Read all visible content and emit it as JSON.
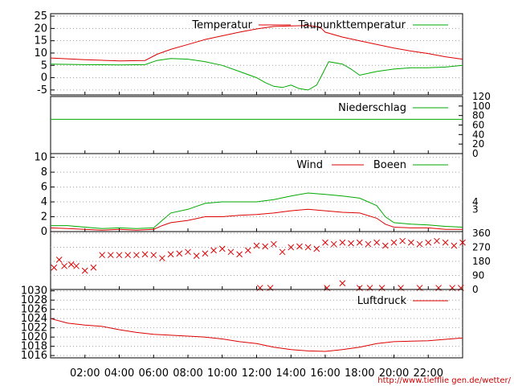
{
  "credit": "http://www.tiefflie gen.de/wetter/",
  "colors": {
    "red": "#dd0000",
    "green": "#00aa00",
    "grid": "#a0a0a0"
  },
  "chart_data": [
    {
      "type": "line",
      "name": "temperature",
      "ylim": [
        -7,
        26
      ],
      "yticks": [
        "25",
        "20",
        "15",
        "10",
        "5",
        "0",
        "-5"
      ],
      "legend": [
        "Temperatur",
        "Taupunkttemperatur"
      ],
      "series": [
        {
          "name": "Temperatur",
          "color": "red",
          "x": [
            0,
            2,
            4,
            5.5,
            6.2,
            7,
            8,
            9,
            10,
            11,
            12,
            13,
            14,
            15,
            15.7,
            16,
            17,
            18,
            19,
            20,
            21,
            22,
            23,
            24
          ],
          "values": [
            8,
            7.3,
            6.8,
            7,
            9.5,
            11.5,
            13.5,
            15.5,
            17,
            18.5,
            19.8,
            20.8,
            21,
            21.2,
            20.5,
            18.5,
            16.5,
            15,
            13.5,
            12,
            10.8,
            9.8,
            8.5,
            7.5
          ]
        },
        {
          "name": "Taupunkttemperatur",
          "color": "green",
          "x": [
            0,
            2,
            4,
            5.5,
            6.2,
            7,
            8,
            9,
            10,
            11,
            12,
            12.5,
            13,
            13.5,
            14,
            14.5,
            15,
            15.5,
            15.8,
            16.2,
            17,
            17.5,
            18,
            19,
            20,
            21,
            22,
            23,
            24
          ],
          "values": [
            5.5,
            5.3,
            5.2,
            5.3,
            7,
            7.8,
            7.5,
            6.5,
            5,
            2.5,
            0,
            -2,
            -3.5,
            -4,
            -3,
            -4.5,
            -5,
            -3,
            1,
            6.5,
            5.5,
            3.5,
            1,
            2.5,
            3.5,
            4,
            4,
            4.3,
            5
          ]
        }
      ]
    },
    {
      "type": "line",
      "name": "precipitation",
      "ylim": [
        0,
        120
      ],
      "yticks": [
        "120",
        "100",
        "80",
        "60",
        "40",
        "20",
        "0"
      ],
      "legend": [
        "Niederschlag"
      ],
      "series": [
        {
          "name": "Niederschlag",
          "color": "green",
          "x": [
            0,
            24
          ],
          "values": [
            72,
            72
          ]
        }
      ]
    },
    {
      "type": "line",
      "name": "wind",
      "ylim": [
        0,
        10.5
      ],
      "yticks": [
        "10",
        "8",
        "6",
        "4",
        "2",
        "0"
      ],
      "righticks": [
        "4",
        "3"
      ],
      "legend": [
        "Wind",
        "Boeen"
      ],
      "series": [
        {
          "name": "Wind",
          "color": "red",
          "x": [
            0,
            1,
            2,
            3,
            4,
            5,
            6,
            6.5,
            7,
            8,
            9,
            10,
            11,
            12,
            13,
            14,
            15,
            16,
            17,
            18,
            19,
            19.5,
            20,
            21,
            22,
            23,
            24
          ],
          "values": [
            0.5,
            0.4,
            0.3,
            0.2,
            0.3,
            0.2,
            0.3,
            0.8,
            1.2,
            1.5,
            2,
            2,
            2.2,
            2.3,
            2.5,
            2.8,
            3,
            2.8,
            2.6,
            2.5,
            1.8,
            1,
            0.6,
            0.5,
            0.5,
            0.3,
            0.3
          ]
        },
        {
          "name": "Boeen",
          "color": "green",
          "x": [
            0,
            1,
            2,
            3,
            4,
            5,
            6,
            6.5,
            7,
            8,
            9,
            10,
            11,
            12,
            13,
            14,
            15,
            16,
            17,
            18,
            19,
            19.5,
            20,
            21,
            22,
            23,
            24
          ],
          "values": [
            0.8,
            0.8,
            0.6,
            0.4,
            0.5,
            0.4,
            0.5,
            1.5,
            2.5,
            3,
            3.8,
            4,
            4,
            4,
            4.3,
            4.8,
            5.2,
            5,
            4.8,
            4.5,
            3.5,
            2,
            1.2,
            1,
            0.9,
            0.7,
            0.6
          ]
        }
      ]
    },
    {
      "type": "scatter",
      "name": "wind-direction",
      "ylim": [
        0,
        370
      ],
      "righticks": [
        "360",
        "270",
        "180",
        "90",
        "0"
      ],
      "series": [
        {
          "name": "direction",
          "color": "red",
          "x": [
            0.2,
            0.5,
            0.8,
            1.2,
            1.5,
            2,
            2.5,
            3,
            3.5,
            4,
            4.5,
            5,
            5.5,
            6,
            6.5,
            7,
            7.5,
            8,
            8.5,
            9,
            9.5,
            10,
            10.5,
            11,
            11.5,
            12,
            12.5,
            13,
            13.5,
            14,
            14.5,
            15,
            15.5,
            16,
            16.5,
            17,
            17.5,
            18,
            18.5,
            19,
            19.5,
            20,
            20.5,
            21,
            21.5,
            22,
            22.5,
            23,
            23.5,
            24,
            12.2,
            12.8,
            16.1,
            17,
            18,
            18.6,
            19.3,
            20.4,
            21.5,
            22.6,
            23.4,
            23.9
          ],
          "values": [
            140,
            190,
            150,
            160,
            150,
            120,
            140,
            220,
            220,
            220,
            220,
            220,
            225,
            220,
            200,
            225,
            230,
            240,
            215,
            230,
            250,
            260,
            240,
            225,
            250,
            280,
            275,
            290,
            240,
            270,
            275,
            270,
            260,
            300,
            290,
            300,
            295,
            300,
            290,
            300,
            280,
            300,
            310,
            300,
            290,
            300,
            310,
            300,
            280,
            300,
            10,
            10,
            10,
            40,
            10,
            10,
            10,
            10,
            10,
            10,
            10,
            10
          ]
        }
      ]
    },
    {
      "type": "line",
      "name": "pressure",
      "ylim": [
        1015.5,
        1030.3
      ],
      "yticks": [
        "1030",
        "1028",
        "1026",
        "1024",
        "1022",
        "1020",
        "1018",
        "1016"
      ],
      "legend": [
        "Luftdruck"
      ],
      "xticks": [
        "02:00",
        "04:00",
        "06:00",
        "08:00",
        "10:00",
        "12:00",
        "14:00",
        "16:00",
        "18:00",
        "20:00",
        "22:00"
      ],
      "series": [
        {
          "name": "Luftdruck",
          "color": "red",
          "x": [
            0,
            1,
            2,
            3,
            4,
            5,
            6,
            7,
            8,
            9,
            10,
            11,
            12,
            13,
            14,
            15,
            16,
            17,
            18,
            19,
            20,
            21,
            22,
            23,
            24
          ],
          "values": [
            1024,
            1023,
            1022.6,
            1022.3,
            1021.6,
            1021,
            1020.6,
            1020.4,
            1020.2,
            1020,
            1019.6,
            1019,
            1018.6,
            1017.8,
            1017.3,
            1017,
            1016.9,
            1017.3,
            1017.8,
            1018.6,
            1019,
            1019.1,
            1019.2,
            1019.5,
            1019.8
          ]
        }
      ]
    }
  ]
}
